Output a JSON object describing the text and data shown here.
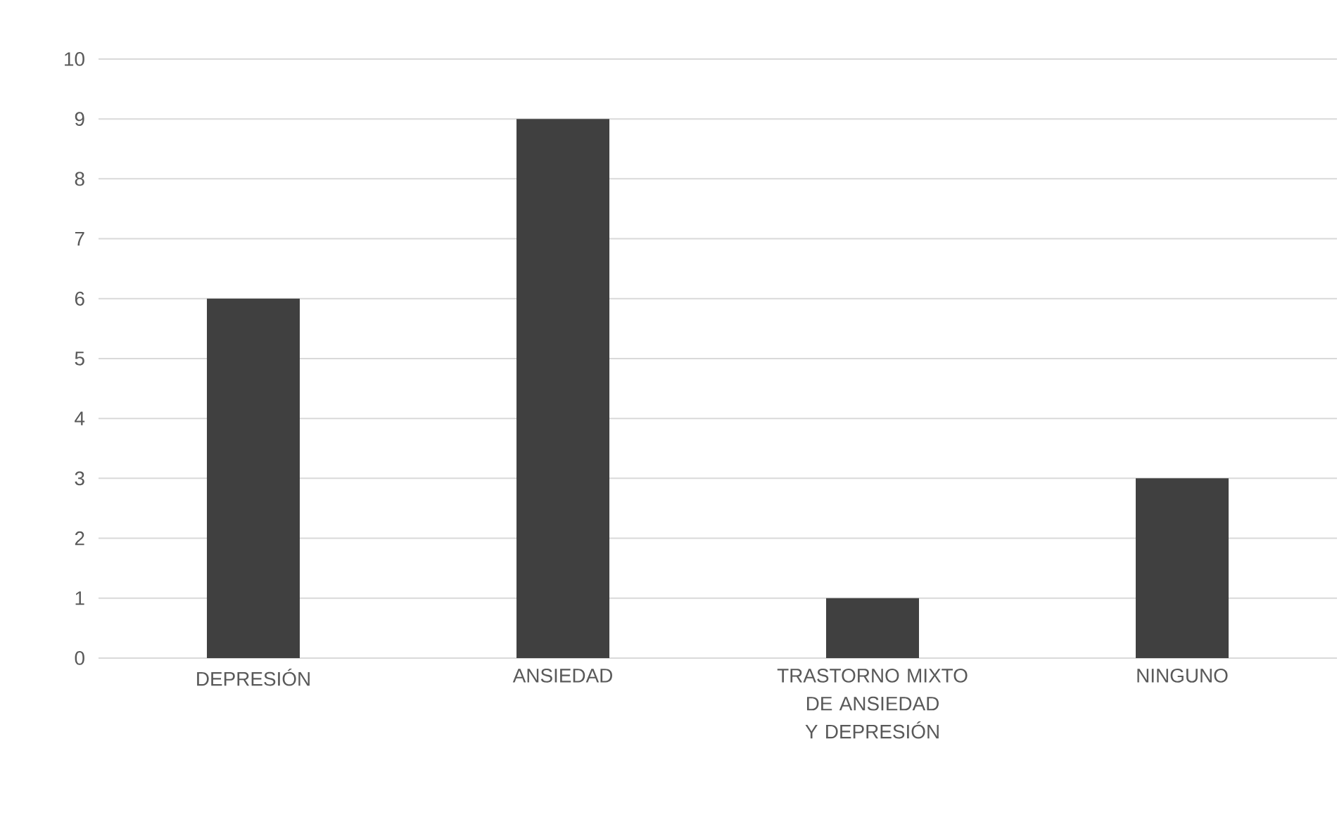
{
  "chart_data": {
    "type": "bar",
    "categories": [
      "DEPRESIÓN",
      "ANSIEDAD",
      "TRASTORNO MIXTO DE ANSIEDAD Y DEPRESIÓN",
      "NINGUNO"
    ],
    "values": [
      6,
      9,
      1,
      3
    ],
    "color": "#404040",
    "ylim": [
      0,
      10
    ],
    "yticks": [
      0,
      1,
      2,
      3,
      4,
      5,
      6,
      7,
      8,
      9,
      10
    ],
    "grid": "y"
  }
}
